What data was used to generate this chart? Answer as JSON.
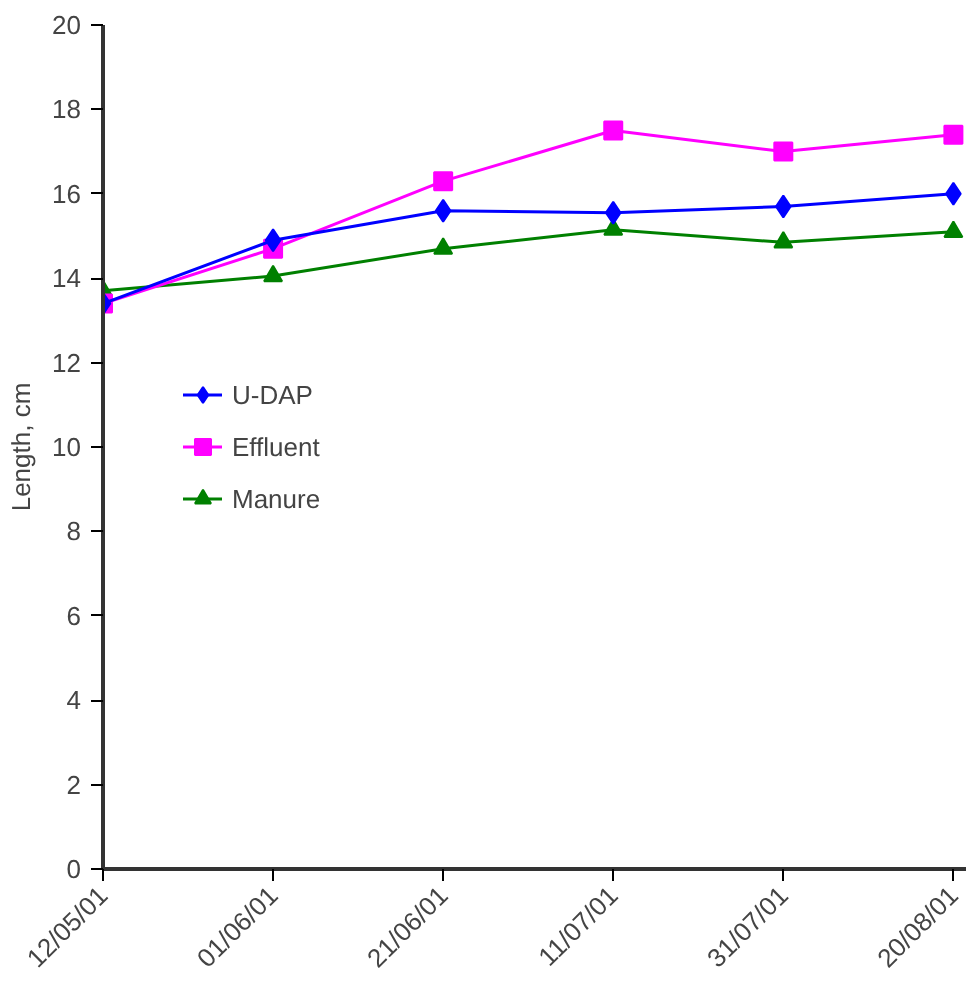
{
  "chart_data": {
    "type": "line",
    "ylabel": "Length, cm",
    "categories": [
      "12/05/01",
      "01/06/01",
      "21/06/01",
      "11/07/01",
      "31/07/01",
      "20/08/01"
    ],
    "series": [
      {
        "name": "U-DAP",
        "color": "#0000ff",
        "marker": "diamond",
        "values": [
          13.4,
          14.9,
          15.6,
          15.55,
          15.7,
          16.0
        ]
      },
      {
        "name": "Effluent",
        "color": "#ff00ff",
        "marker": "square",
        "values": [
          13.4,
          14.7,
          16.3,
          17.5,
          17.0,
          17.4
        ]
      },
      {
        "name": "Manure",
        "color": "#008000",
        "marker": "triangle",
        "values": [
          13.7,
          14.05,
          14.7,
          15.15,
          14.85,
          15.1
        ]
      }
    ],
    "ylim": [
      0,
      20
    ],
    "yticks": [
      0,
      2,
      4,
      6,
      8,
      10,
      12,
      14,
      16,
      18,
      20
    ],
    "grid": false,
    "legend": "left"
  }
}
